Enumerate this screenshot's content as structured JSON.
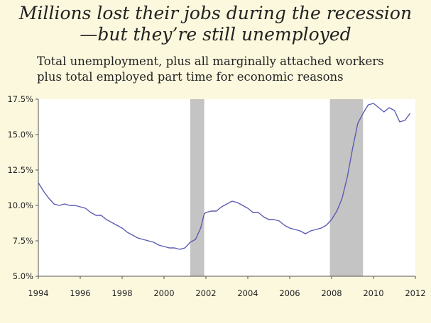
{
  "header": {
    "title_line1": "Millions lost their jobs during the recession",
    "title_line2": "—but they’re still unemployed",
    "subtitle_line1": "Total unemployment, plus all marginally attached workers",
    "subtitle_line2": "plus total employed part time for economic reasons"
  },
  "chart_data": {
    "type": "line",
    "title": "Millions lost their jobs during the recession—but they’re still unemployed",
    "subtitle": "Total unemployment, plus all marginally attached workers plus total employed part time for economic reasons",
    "xlabel": "",
    "ylabel": "",
    "xlim": [
      1994,
      2012
    ],
    "ylim": [
      5.0,
      17.5
    ],
    "x_ticks": [
      1994,
      1996,
      1998,
      2000,
      2002,
      2004,
      2006,
      2008,
      2010,
      2012
    ],
    "y_ticks": [
      5.0,
      7.5,
      10.0,
      12.5,
      15.0,
      17.5
    ],
    "y_tick_labels": [
      "5.0%",
      "7.5%",
      "10.0%",
      "12.5%",
      "15.0%",
      "17.5%"
    ],
    "grid": false,
    "line_color": "#5b5bb4",
    "recession_color": "#c4c4c4",
    "recessions": [
      [
        2001.25,
        2001.92
      ],
      [
        2007.92,
        2009.5
      ]
    ],
    "series": [
      {
        "x": [
          1994.0,
          1994.25,
          1994.5,
          1994.75,
          1995.0,
          1995.25,
          1995.5,
          1995.75,
          1996.0,
          1996.25,
          1996.5,
          1996.75,
          1997.0,
          1997.25,
          1997.5,
          1997.75,
          1998.0,
          1998.25,
          1998.5,
          1998.75,
          1999.0,
          1999.25,
          1999.5,
          1999.75,
          2000.0,
          2000.25,
          2000.5,
          2000.75,
          2001.0,
          2001.25,
          2001.5,
          2001.75,
          2001.92,
          2002.0,
          2002.25,
          2002.5,
          2002.75,
          2003.0,
          2003.25,
          2003.5,
          2003.75,
          2004.0,
          2004.25,
          2004.5,
          2004.75,
          2005.0,
          2005.25,
          2005.5,
          2005.75,
          2006.0,
          2006.25,
          2006.5,
          2006.75,
          2007.0,
          2007.25,
          2007.5,
          2007.75,
          2008.0,
          2008.25,
          2008.5,
          2008.75,
          2009.0,
          2009.25,
          2009.5,
          2009.75,
          2010.0,
          2010.25,
          2010.5,
          2010.75,
          2011.0,
          2011.25,
          2011.5,
          2011.75
        ],
        "values": [
          11.6,
          11.0,
          10.5,
          10.1,
          10.0,
          10.1,
          10.0,
          10.0,
          9.9,
          9.8,
          9.5,
          9.3,
          9.3,
          9.0,
          8.8,
          8.6,
          8.4,
          8.1,
          7.9,
          7.7,
          7.6,
          7.5,
          7.4,
          7.2,
          7.1,
          7.0,
          7.0,
          6.9,
          7.0,
          7.4,
          7.6,
          8.4,
          9.4,
          9.5,
          9.6,
          9.6,
          9.9,
          10.1,
          10.3,
          10.2,
          10.0,
          9.8,
          9.5,
          9.5,
          9.2,
          9.0,
          9.0,
          8.9,
          8.6,
          8.4,
          8.3,
          8.2,
          8.0,
          8.2,
          8.3,
          8.4,
          8.6,
          9.0,
          9.6,
          10.5,
          12.0,
          14.0,
          15.8,
          16.5,
          17.1,
          17.2,
          16.9,
          16.6,
          16.9,
          16.7,
          15.9,
          16.0,
          16.5
        ]
      }
    ]
  }
}
